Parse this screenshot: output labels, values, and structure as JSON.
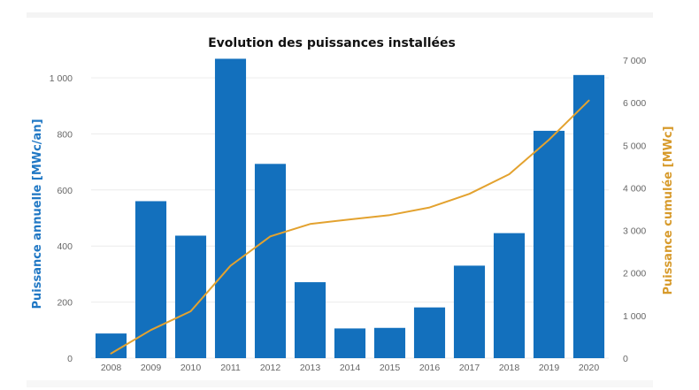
{
  "chart_data": {
    "type": "bar",
    "title": "Evolution des puissances installées",
    "categories": [
      "2008",
      "2009",
      "2010",
      "2011",
      "2012",
      "2013",
      "2014",
      "2015",
      "2016",
      "2017",
      "2018",
      "2019",
      "2020"
    ],
    "series": [
      {
        "name": "Puissance annuelle [MWc/an]",
        "type": "bar",
        "axis": "left",
        "color": "#1370bd",
        "values": [
          88,
          560,
          437,
          1068,
          693,
          271,
          106,
          108,
          181,
          330,
          446,
          811,
          1010
        ]
      },
      {
        "name": "Puissance cumulée [MWc]",
        "type": "line",
        "axis": "right",
        "color": "#e3a22f",
        "values": [
          110,
          660,
          1100,
          2170,
          2860,
          3150,
          3260,
          3360,
          3540,
          3860,
          4320,
          5130,
          6050
        ]
      }
    ],
    "ylabel_left": "Puissance annuelle [MWc/an]",
    "ylabel_right": "Puissance cumulée [MWc]",
    "ylim_left": [
      0,
      1100
    ],
    "ylim_right": [
      0,
      7000
    ],
    "yticks_left": [
      "0",
      "200",
      "400",
      "600",
      "800",
      "1 000"
    ],
    "yticks_right": [
      "0",
      "1 000",
      "2 000",
      "3 000",
      "4 000",
      "5 000",
      "6 000",
      "7 000"
    ],
    "grid": true,
    "legend": "none"
  }
}
